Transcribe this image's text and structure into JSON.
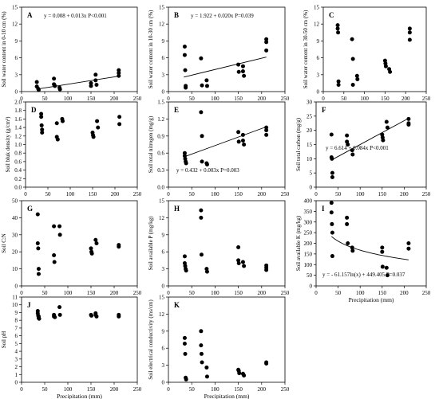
{
  "x_axis_title": "Precipitation (mm)",
  "colors": {
    "marker": "#000000",
    "axis": "#000000",
    "fit_line": "#000000"
  },
  "chart_data": [
    {
      "type": "scatter",
      "panel_label": "A",
      "ylabel": "Soil water content in 0-10 cm (%)",
      "ylim": [
        0,
        15
      ],
      "yticks": [
        "0",
        "3",
        "6",
        "9",
        "12",
        "15"
      ],
      "xlim": [
        0,
        250
      ],
      "xticks": [
        "0",
        "50",
        "100",
        "150",
        "200",
        "250"
      ],
      "annotation": "y = 0.008 + 0.013x  P<0.001",
      "fit": {
        "kind": "linear",
        "a": 0.008,
        "b": 0.013,
        "x_range": [
          33,
          210
        ]
      },
      "x": [
        33,
        33,
        36,
        37,
        70,
        70,
        72,
        82,
        83,
        150,
        150,
        160,
        160,
        162,
        210,
        210,
        210
      ],
      "y": [
        1.7,
        0.9,
        0.5,
        0.3,
        2.3,
        1.3,
        1.0,
        0.7,
        0.4,
        1.5,
        1.0,
        3.0,
        2.0,
        1.2,
        3.8,
        3.3,
        2.8
      ]
    },
    {
      "type": "scatter",
      "panel_label": "B",
      "ylabel": "Soil water content in 10-30 cm (%)",
      "ylim": [
        0,
        15
      ],
      "yticks": [
        "0",
        "3",
        "6",
        "9",
        "12",
        "15"
      ],
      "xlim": [
        0,
        250
      ],
      "xticks": [
        "0",
        "50",
        "100",
        "150",
        "200",
        "250"
      ],
      "annotation": "y = 1.922 + 0.020x  P=0.039",
      "fit": {
        "kind": "linear",
        "a": 1.922,
        "b": 0.02,
        "x_range": [
          33,
          210
        ]
      },
      "x": [
        35,
        35,
        36,
        37,
        37,
        70,
        72,
        82,
        83,
        150,
        151,
        160,
        160,
        162,
        210,
        210,
        210
      ],
      "y": [
        8.0,
        6.5,
        3.8,
        1.0,
        0.7,
        5.9,
        1.1,
        2.0,
        1.0,
        4.8,
        3.5,
        4.5,
        3.6,
        2.8,
        9.3,
        8.8,
        7.3
      ]
    },
    {
      "type": "scatter",
      "panel_label": "C",
      "ylabel": "Soil water content in 30-50 cm (%)",
      "ylim": [
        0,
        15
      ],
      "yticks": [
        "0",
        "3",
        "6",
        "9",
        "12",
        "15"
      ],
      "xlim": [
        0,
        250
      ],
      "xticks": [
        "0",
        "50",
        "100",
        "150",
        "200",
        "250"
      ],
      "annotation": "",
      "x": [
        35,
        35,
        36,
        37,
        37,
        70,
        72,
        72,
        82,
        83,
        150,
        151,
        152,
        160,
        162,
        210,
        210,
        210
      ],
      "y": [
        11.8,
        11.2,
        10.5,
        1.8,
        1.2,
        9.3,
        5.8,
        1.2,
        2.8,
        2.2,
        5.5,
        5.0,
        4.5,
        4.0,
        3.5,
        11.2,
        10.5,
        9.2
      ]
    },
    {
      "type": "scatter",
      "panel_label": "D",
      "ylabel": "Soil bluk density (g/cm³)",
      "ylim": [
        0,
        2.0
      ],
      "yticks": [
        "0.0",
        "0.2",
        "0.4",
        "0.6",
        "0.8",
        "1.0",
        "1.2",
        "1.4",
        "1.6",
        "1.8",
        "2.0"
      ],
      "xlim": [
        0,
        250
      ],
      "xticks": [
        "0",
        "50",
        "100",
        "150",
        "200",
        "250"
      ],
      "annotation": "",
      "x": [
        35,
        35,
        36,
        37,
        37,
        70,
        70,
        72,
        82,
        83,
        150,
        151,
        152,
        160,
        162,
        210,
        210
      ],
      "y": [
        1.72,
        1.65,
        1.45,
        1.35,
        1.28,
        1.5,
        1.18,
        1.12,
        1.6,
        1.55,
        1.28,
        1.22,
        1.18,
        1.55,
        1.4,
        1.65,
        1.48
      ]
    },
    {
      "type": "scatter",
      "panel_label": "E",
      "ylabel": "Soil total nitrogen (mg/g)",
      "ylim": [
        0,
        1.5
      ],
      "yticks": [
        "0.0",
        "0.3",
        "0.6",
        "0.9",
        "1.2",
        "1.5"
      ],
      "xlim": [
        0,
        250
      ],
      "xticks": [
        "0",
        "50",
        "100",
        "150",
        "200",
        "250"
      ],
      "annotation": "y = 0.432 + 0.003x  P=0.003",
      "fit": {
        "kind": "linear",
        "a": 0.432,
        "b": 0.003,
        "x_range": [
          35,
          210
        ]
      },
      "x": [
        35,
        35,
        36,
        37,
        38,
        70,
        72,
        72,
        82,
        83,
        150,
        151,
        160,
        160,
        162,
        210,
        210,
        210
      ],
      "y": [
        0.6,
        0.55,
        0.5,
        0.45,
        0.42,
        1.32,
        0.9,
        0.45,
        0.42,
        0.4,
        0.97,
        0.8,
        0.92,
        0.82,
        0.75,
        1.05,
        1.0,
        0.92
      ]
    },
    {
      "type": "scatter",
      "panel_label": "F",
      "ylabel": "Soil total carbon (mg/g)",
      "ylim": [
        0,
        30
      ],
      "yticks": [
        "0",
        "5",
        "10",
        "15",
        "20",
        "25",
        "30"
      ],
      "xlim": [
        0,
        250
      ],
      "xticks": [
        "0",
        "50",
        "100",
        "150",
        "200",
        "250"
      ],
      "annotation": "y = 6.614 + 0.084x  P<0.001",
      "fit": {
        "kind": "linear",
        "a": 6.614,
        "b": 0.084,
        "x_range": [
          35,
          210
        ]
      },
      "x": [
        35,
        35,
        36,
        37,
        37,
        70,
        70,
        72,
        82,
        83,
        150,
        151,
        152,
        160,
        162,
        210,
        210,
        210
      ],
      "y": [
        18.5,
        10.5,
        10.0,
        5.0,
        3.5,
        18.2,
        16.0,
        15.0,
        13.0,
        11.5,
        18.5,
        17.5,
        16.5,
        23.0,
        21.0,
        24.0,
        22.5,
        22.0
      ]
    },
    {
      "type": "scatter",
      "panel_label": "G",
      "ylabel": "Soil C:N",
      "ylim": [
        0,
        50
      ],
      "yticks": [
        "0",
        "10",
        "20",
        "30",
        "40",
        "50"
      ],
      "xlim": [
        0,
        250
      ],
      "xticks": [
        "0",
        "50",
        "100",
        "150",
        "200",
        "250"
      ],
      "annotation": "",
      "x": [
        35,
        35,
        36,
        37,
        37,
        70,
        70,
        71,
        82,
        83,
        150,
        151,
        152,
        160,
        162,
        210,
        210
      ],
      "y": [
        42,
        25,
        22,
        10,
        7,
        35,
        18,
        14,
        35,
        30,
        22,
        20,
        19,
        27,
        25,
        24,
        23
      ]
    },
    {
      "type": "scatter",
      "panel_label": "H",
      "ylabel": "Soil available P (mg/kg)",
      "ylim": [
        0,
        15
      ],
      "yticks": [
        "0",
        "3",
        "6",
        "9",
        "12",
        "15"
      ],
      "xlim": [
        0,
        250
      ],
      "xticks": [
        "0",
        "50",
        "100",
        "150",
        "200",
        "250"
      ],
      "annotation": "",
      "x": [
        35,
        35,
        36,
        37,
        38,
        70,
        70,
        71,
        82,
        83,
        150,
        150,
        151,
        160,
        162,
        210,
        210,
        210
      ],
      "y": [
        5.2,
        4.0,
        3.5,
        3.0,
        2.7,
        13.3,
        12.0,
        5.5,
        3.0,
        2.5,
        6.8,
        4.5,
        4.0,
        4.2,
        3.5,
        3.6,
        3.2,
        2.8
      ]
    },
    {
      "type": "scatter",
      "panel_label": "I",
      "ylabel": "Soil available K (mg/kg)",
      "ylim": [
        0,
        400
      ],
      "yticks": [
        "0",
        "50",
        "100",
        "150",
        "200",
        "250",
        "300",
        "350",
        "400"
      ],
      "xlim": [
        0,
        250
      ],
      "xticks": [
        "0",
        "50",
        "100",
        "150",
        "200",
        "250"
      ],
      "annotation": "y = - 61.157ln(x) + 449.405  P=0.037",
      "fit": {
        "kind": "log",
        "a": 449.405,
        "b": -61.157,
        "x_range": [
          35,
          210
        ]
      },
      "x": [
        35,
        35,
        36,
        37,
        37,
        70,
        70,
        72,
        82,
        83,
        150,
        150,
        151,
        160,
        162,
        210,
        210
      ],
      "y": [
        390,
        345,
        290,
        250,
        140,
        320,
        290,
        200,
        180,
        165,
        180,
        160,
        90,
        85,
        50,
        200,
        175
      ]
    },
    {
      "type": "scatter",
      "panel_label": "J",
      "ylabel": "Soil pH",
      "ylim": [
        0,
        11
      ],
      "yticks": [
        "0",
        "1",
        "2",
        "3",
        "4",
        "5",
        "6",
        "7",
        "8",
        "9",
        "10",
        "11"
      ],
      "xlim": [
        0,
        250
      ],
      "xticks": [
        "0",
        "50",
        "100",
        "150",
        "200",
        "250"
      ],
      "annotation": "",
      "x": [
        35,
        35,
        36,
        37,
        37,
        38,
        70,
        70,
        72,
        82,
        83,
        150,
        151,
        160,
        160,
        162,
        210,
        210
      ],
      "y": [
        9.2,
        8.9,
        8.6,
        8.5,
        8.3,
        8.2,
        8.7,
        8.5,
        8.4,
        9.7,
        8.7,
        8.7,
        8.6,
        8.9,
        8.7,
        8.5,
        8.7,
        8.5
      ]
    },
    {
      "type": "scatter",
      "panel_label": "K",
      "ylabel": "Soil electrical conductivity (ms/cm)",
      "ylim": [
        0,
        15
      ],
      "yticks": [
        "0",
        "3",
        "6",
        "9",
        "12",
        "15"
      ],
      "xlim": [
        0,
        250
      ],
      "xticks": [
        "0",
        "50",
        "100",
        "150",
        "200",
        "250"
      ],
      "annotation": "",
      "x": [
        35,
        35,
        36,
        37,
        38,
        70,
        70,
        71,
        72,
        82,
        83,
        150,
        151,
        152,
        160,
        162,
        210,
        210
      ],
      "y": [
        7.8,
        6.8,
        5.0,
        0.8,
        0.5,
        9.0,
        6.5,
        5.0,
        3.5,
        2.6,
        1.0,
        2.2,
        2.0,
        1.6,
        1.5,
        1.2,
        3.5,
        3.3
      ]
    }
  ]
}
